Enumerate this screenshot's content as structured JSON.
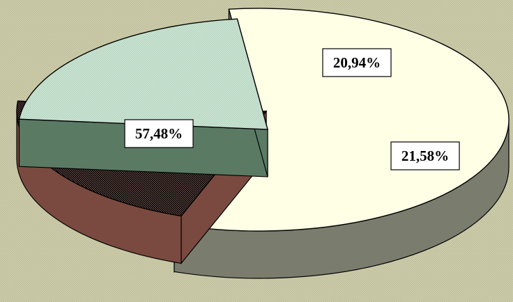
{
  "chart_data": {
    "type": "pie",
    "style": "3d-exploded",
    "slices": [
      {
        "value": 57.48,
        "label": "57,48%",
        "top_color": "#ffffe8",
        "side_color": "#7a7d6e"
      },
      {
        "value": 20.94,
        "label": "20,94%",
        "top_color": "#d9a89c",
        "side_color": "#7a4a40"
      },
      {
        "value": 21.58,
        "label": "21,58%",
        "top_color": "#c8e4d2",
        "side_color": "#5a7a64"
      }
    ],
    "legend": "none",
    "background_color": "#ccccaa"
  }
}
